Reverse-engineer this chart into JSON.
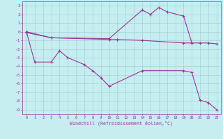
{
  "bg_color": "#c6eef0",
  "line_color": "#993399",
  "grid_color": "#99cccc",
  "xlim": [
    -0.5,
    23.5
  ],
  "ylim": [
    -9.5,
    3.5
  ],
  "xticks": [
    0,
    1,
    2,
    3,
    4,
    5,
    6,
    7,
    8,
    9,
    10,
    11,
    12,
    13,
    14,
    15,
    16,
    17,
    18,
    19,
    20,
    21,
    22,
    23
  ],
  "yticks": [
    -9,
    -8,
    -7,
    -6,
    -5,
    -4,
    -3,
    -2,
    -1,
    0,
    1,
    2,
    3
  ],
  "xlabel": "Windchill (Refroidissement éolien,°C)",
  "line1_x": [
    0,
    3,
    10,
    14,
    15,
    16,
    17,
    19,
    20
  ],
  "line1_y": [
    0.0,
    -0.7,
    -0.8,
    2.5,
    2.0,
    2.8,
    2.3,
    1.8,
    -1.3
  ],
  "line2_x": [
    0,
    3,
    10,
    11,
    14,
    19,
    20,
    21,
    22,
    23
  ],
  "line2_y": [
    -0.1,
    -0.7,
    -0.9,
    -0.9,
    -1.0,
    -1.3,
    -1.3,
    -1.3,
    -1.3,
    -1.4
  ],
  "line3_x": [
    0,
    1,
    3,
    4,
    5,
    7,
    8,
    9,
    10,
    14,
    19,
    20,
    21,
    22,
    23
  ],
  "line3_y": [
    0.0,
    -3.5,
    -3.5,
    -2.2,
    -3.0,
    -3.8,
    -4.5,
    -5.3,
    -6.3,
    -4.5,
    -4.5,
    -4.7,
    -7.9,
    -8.2,
    -9.0
  ]
}
